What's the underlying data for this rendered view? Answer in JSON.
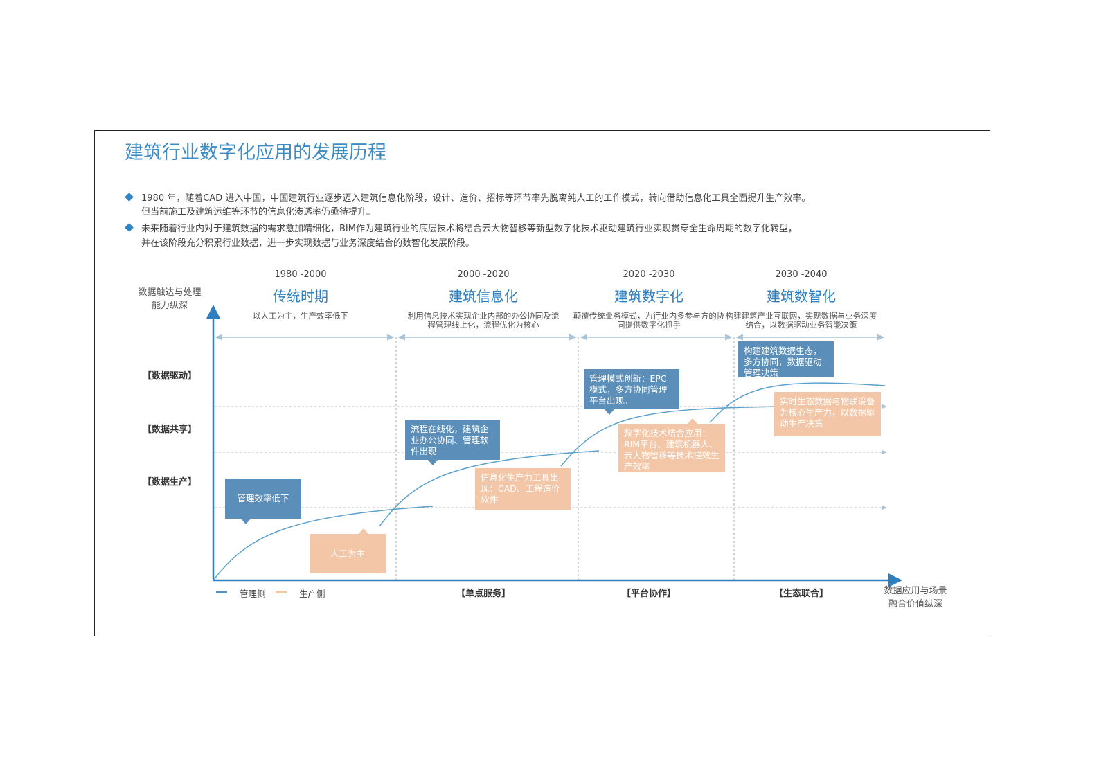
{
  "title": "建筑行业数字化应用的发展历程",
  "bullets": [
    {
      "lines": [
        "1980 年，随着CAD 进入中国，中国建筑行业逐步迈入建筑信息化阶段，设计、造价、招标等环节率先脱离纯人工的工作模式，转向借助信息化工具全面提升生产效率。",
        "但当前施工及建筑运维等环节的信息化渗透率仍亟待提升。"
      ]
    },
    {
      "lines": [
        "未来随着行业内对于建筑数据的需求愈加精细化，BIM作为建筑行业的底层技术将结合云大物智移等新型数字化技术驱动建筑行业实现贯穿全生命周期的数字化转型，",
        "并在该阶段充分积累行业数据，进一步实现数据与业务深度结合的数智化发展阶段。"
      ]
    }
  ],
  "diagram": {
    "y_axis_label": [
      "数据触达与处理",
      "能力纵深"
    ],
    "x_axis_label": [
      "数据应用与场景",
      "融合价值纵深"
    ],
    "y_levels": [
      "【数据驱动】",
      "【数据共享】",
      "【数据生产】"
    ],
    "stages": [
      {
        "years": "1980 -2000",
        "name": "传统时期",
        "description": "以人工为主，生产效率低下"
      },
      {
        "years": "2000 -2020",
        "name": "建筑信息化",
        "description": "利用信息技术实现企业内部的办公协同及流程管理线上化，流程优化为核心"
      },
      {
        "years": "2020 -2030",
        "name": "建筑数字化",
        "description": "颠覆传统业务模式，为行业内多参与方的协同提供数字化抓手"
      },
      {
        "years": "2030 -2040",
        "name": "建筑数智化",
        "description": "构建建筑产业互联网，实现数据与业务深度结合，以数据驱动业务智能决策"
      }
    ],
    "x_categories": [
      "【单点服务】",
      "【平台协作】",
      "【生态联合】"
    ],
    "legend": [
      {
        "name": "管理侧",
        "color": "#5b8fb9"
      },
      {
        "name": "生产侧",
        "color": "#f2c6a6"
      }
    ],
    "callouts": [
      {
        "side": "管理侧",
        "text": "管理效率低下"
      },
      {
        "side": "生产侧",
        "text": "人工为主"
      },
      {
        "side": "管理侧",
        "text": "流程在线化，建筑企业办公协同、管理软件出现"
      },
      {
        "side": "生产侧",
        "text": "信息化生产力工具出现：CAD、工程造价软件"
      },
      {
        "side": "管理侧",
        "text": "管理模式创新：EPC模式，多方协同管理平台出现。"
      },
      {
        "side": "生产侧",
        "text": "数字化技术结合应用：BIM平台、建筑机器人、云大物智移等技术提效生产效率"
      },
      {
        "side": "管理侧",
        "text": "构建建筑数据生态，多方协同，数据驱动管理决策"
      },
      {
        "side": "生产侧",
        "text": "实时生态数据与物联设备为核心生产力，以数据驱动生产决策"
      }
    ]
  }
}
